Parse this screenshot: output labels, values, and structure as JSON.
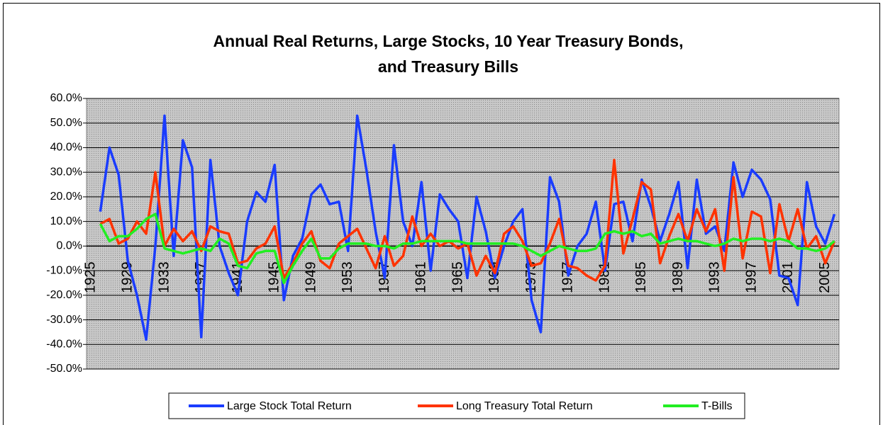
{
  "chart_data": {
    "type": "line",
    "title": "Annual Real Returns, Large Stocks, 10 Year Treasury Bonds,",
    "subtitle": "and Treasury Bills",
    "categories": [
      "1925",
      null,
      null,
      null,
      "1929",
      null,
      null,
      null,
      "1933",
      null,
      null,
      null,
      "1937",
      null,
      null,
      null,
      "1941",
      null,
      null,
      null,
      "1945",
      null,
      null,
      null,
      "1949",
      null,
      null,
      null,
      "1953",
      null,
      null,
      null,
      "1957",
      null,
      null,
      null,
      "1961",
      null,
      null,
      null,
      "1965",
      null,
      null,
      null,
      "1969",
      null,
      null,
      null,
      "1973",
      null,
      null,
      null,
      "1977",
      null,
      null,
      null,
      "1981",
      null,
      null,
      null,
      "1985",
      null,
      null,
      null,
      "1989",
      null,
      null,
      null,
      "1993",
      null,
      null,
      null,
      "1997",
      null,
      null,
      null,
      "2001",
      null,
      null,
      null,
      "2005",
      null
    ],
    "series": [
      {
        "name": "Large Stock Total Return",
        "color": "#1a3cff",
        "values": [
          null,
          14,
          40,
          29,
          -6,
          -20,
          -38,
          0,
          53,
          -4,
          43,
          32,
          -37,
          35,
          0,
          -11,
          -20,
          10,
          22,
          18,
          33,
          -22,
          -4,
          3,
          21,
          25,
          17,
          18,
          -2,
          53,
          31,
          6,
          -13,
          41,
          10,
          0,
          26,
          -10,
          21,
          15,
          10,
          -13,
          20,
          6,
          -13,
          0,
          10,
          15,
          -22,
          -35,
          28,
          18,
          -12,
          0,
          5,
          18,
          -10,
          17,
          18,
          2,
          27,
          16,
          2,
          13,
          26,
          -9,
          27,
          5,
          8,
          -2,
          34,
          20,
          31,
          27,
          19,
          -12,
          -13,
          -24,
          26,
          8,
          1,
          13
        ]
      },
      {
        "name": "Long Treasury Total Return",
        "color": "#ff3300",
        "values": [
          null,
          9,
          11,
          1,
          3,
          10,
          5,
          30,
          0,
          7,
          2,
          6,
          -2,
          8,
          6,
          5,
          -7,
          -6,
          -1,
          1,
          8,
          -13,
          -7,
          1,
          6,
          -6,
          -9,
          1,
          4,
          7,
          -1,
          -9,
          4,
          -8,
          -4,
          12,
          0,
          5,
          0,
          2,
          -1,
          1,
          -12,
          -4,
          -11,
          5,
          8,
          2,
          -8,
          -7,
          1,
          11,
          -8,
          -9,
          -12,
          -14,
          -8,
          35,
          -3,
          11,
          26,
          23,
          -7,
          4,
          13,
          2,
          15,
          6,
          15,
          -10,
          28,
          -5,
          14,
          12,
          -11,
          17,
          2,
          15,
          -1,
          4,
          -7,
          2
        ]
      },
      {
        "name": "T-Bills",
        "color": "#22ee22",
        "values": [
          null,
          9,
          2,
          4,
          4,
          7,
          11,
          13,
          -1,
          -2,
          -3,
          -2,
          -1,
          -2,
          3,
          1,
          -8,
          -9,
          -3,
          -2,
          -2,
          -15,
          -8,
          -2,
          3,
          -5,
          -5,
          -1,
          1,
          1,
          1,
          0,
          0,
          -1,
          1,
          1,
          2,
          2,
          2,
          2,
          2,
          1,
          1,
          1,
          1,
          1,
          1,
          0,
          -2,
          -4,
          -2,
          0,
          -1,
          -2,
          -2,
          -1,
          5,
          6,
          5,
          6,
          4,
          5,
          1,
          2,
          3,
          2,
          2,
          1,
          0,
          1,
          3,
          2,
          3,
          3,
          2,
          3,
          2,
          -1,
          -1,
          -2,
          -1,
          2
        ]
      }
    ],
    "ylim": [
      -50,
      60
    ],
    "yticks": [
      {
        "value": -50,
        "label": "-50.0%"
      },
      {
        "value": -40,
        "label": "-40.0%"
      },
      {
        "value": -30,
        "label": "-30.0%"
      },
      {
        "value": -20,
        "label": "-20.0%"
      },
      {
        "value": -10,
        "label": "-10.0%"
      },
      {
        "value": 0,
        "label": "0.0%"
      },
      {
        "value": 10,
        "label": "10.0%"
      },
      {
        "value": 20,
        "label": "20.0%"
      },
      {
        "value": 30,
        "label": "30.0%"
      },
      {
        "value": 40,
        "label": "40.0%"
      },
      {
        "value": 50,
        "label": "50.0%"
      },
      {
        "value": 60,
        "label": "60.0%"
      }
    ],
    "grid": true,
    "legend": "bottom"
  }
}
